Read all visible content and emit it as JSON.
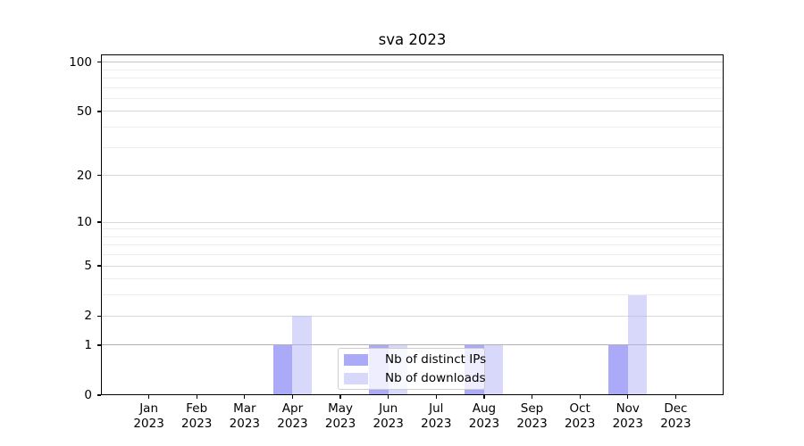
{
  "title": "sva 2023",
  "legend": {
    "items": [
      {
        "label": "Nb of distinct IPs",
        "color": "rgba(85,85,241,0.5)"
      },
      {
        "label": "Nb of downloads",
        "color": "rgba(177,177,245,0.5)"
      }
    ]
  },
  "chart_data": {
    "type": "bar",
    "title": "sva 2023",
    "categories": [
      "Jan",
      "Feb",
      "Mar",
      "Apr",
      "May",
      "Jun",
      "Jul",
      "Aug",
      "Sep",
      "Oct",
      "Nov",
      "Dec"
    ],
    "category_year": "2023",
    "series": [
      {
        "name": "Nb of distinct IPs",
        "color": "rgba(85,85,241,0.5)",
        "values": [
          0,
          0,
          0,
          1,
          0,
          1,
          0,
          1,
          0,
          0,
          1,
          0
        ]
      },
      {
        "name": "Nb of downloads",
        "color": "rgba(177,177,245,0.5)",
        "values": [
          0,
          0,
          0,
          2,
          0,
          1,
          0,
          1,
          0,
          0,
          3,
          0
        ]
      }
    ],
    "xlabel": "",
    "ylabel": "",
    "yscale": "log1p",
    "ylim": [
      0,
      111.4
    ],
    "yticks": [
      0,
      1,
      2,
      5,
      10,
      20,
      50,
      100
    ],
    "minor_yticks": [
      3,
      4,
      6,
      7,
      8,
      9,
      30,
      40,
      60,
      70,
      80,
      90
    ],
    "grid": true,
    "legend_position": "lower center",
    "colors": {
      "grid_major": "#d8d8d8",
      "grid_minor": "#ededed",
      "grid_tick_1": "#b2b2b2",
      "grid_tick_100": "#c4c4c4",
      "axis": "#000000"
    }
  }
}
